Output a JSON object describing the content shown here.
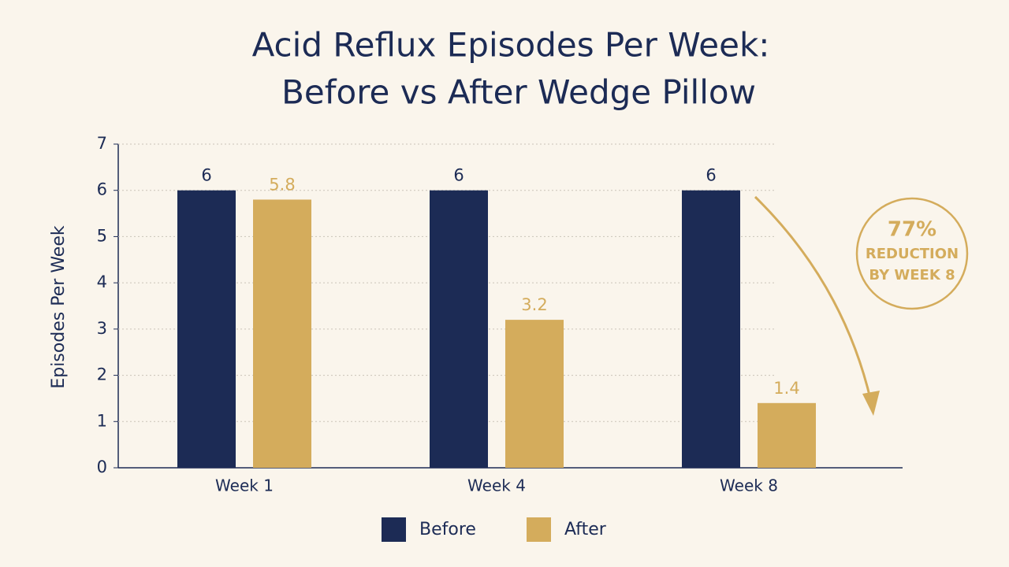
{
  "chart_data": {
    "type": "bar",
    "title": [
      "Acid Reflux Episodes Per Week:",
      "Before vs After Wedge Pillow"
    ],
    "y_label": "Episodes Per Week",
    "categories": [
      "Week 1",
      "Week 4",
      "Week 8"
    ],
    "series": [
      {
        "name": "Before",
        "color": "#1c2b55",
        "values": [
          6,
          6,
          6
        ]
      },
      {
        "name": "After",
        "color": "#d4ac5c",
        "values": [
          5.8,
          3.2,
          1.4
        ]
      }
    ],
    "ylim": [
      0,
      7
    ],
    "yticks": [
      0,
      1,
      2,
      3,
      4,
      5,
      6,
      7
    ],
    "grid": true,
    "annotation": [
      "77%",
      "REDUCTION",
      "BY WEEK 8"
    ]
  }
}
